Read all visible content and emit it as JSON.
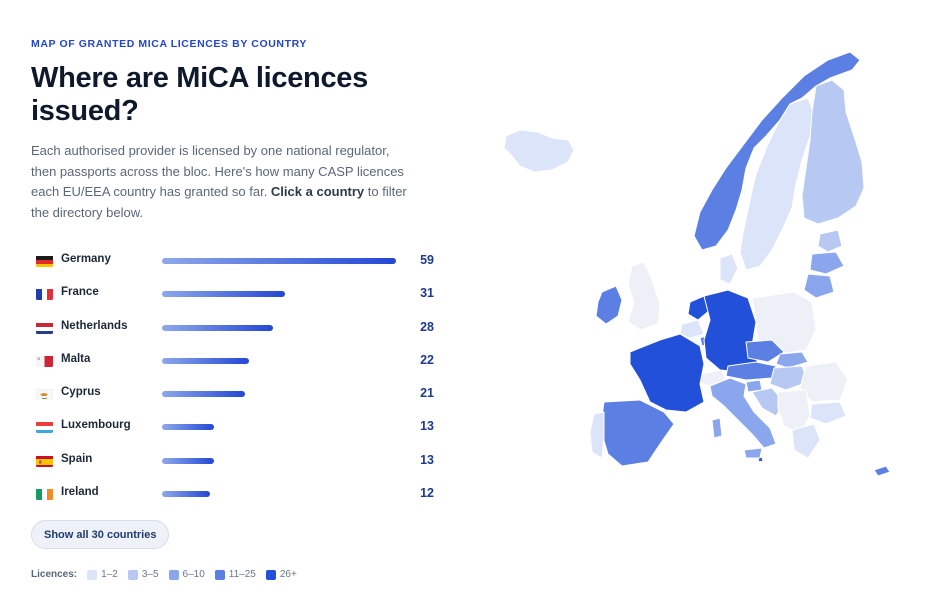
{
  "header": {
    "eyebrow": "MAP OF GRANTED MICA LICENCES BY COUNTRY",
    "title": "Where are MiCA licences issued?",
    "desc_part1": "Each authorised provider is licensed by one national regulator, then passports across the bloc. Here's how many CASP licences each EU/EEA country has granted so far. ",
    "desc_bold1": "Click a",
    "desc_bold2": "country",
    "desc_part2": " to filter the directory below."
  },
  "countries": [
    {
      "name": "Germany",
      "count": "59",
      "value": 59,
      "flag": "germany-flag"
    },
    {
      "name": "France",
      "count": "31",
      "value": 31,
      "flag": "france-flag"
    },
    {
      "name": "Netherlands",
      "count": "28",
      "value": 28,
      "flag": "netherlands-flag"
    },
    {
      "name": "Malta",
      "count": "22",
      "value": 22,
      "flag": "malta-flag"
    },
    {
      "name": "Cyprus",
      "count": "21",
      "value": 21,
      "flag": "cyprus-flag"
    },
    {
      "name": "Luxembourg",
      "count": "13",
      "value": 13,
      "flag": "luxembourg-flag"
    },
    {
      "name": "Spain",
      "count": "13",
      "value": 13,
      "flag": "spain-flag"
    },
    {
      "name": "Ireland",
      "count": "12",
      "value": 12,
      "flag": "ireland-flag"
    }
  ],
  "show_all_label": "Show all 30 countries",
  "legend": {
    "label": "Licences:",
    "items": [
      {
        "label": "1–2",
        "color": "#dbe4f8"
      },
      {
        "label": "3–5",
        "color": "#b7c8f2"
      },
      {
        "label": "6–10",
        "color": "#8aa6ec"
      },
      {
        "label": "11–25",
        "color": "#5b7fe3"
      },
      {
        "label": "26+",
        "color": "#2350d8"
      }
    ]
  },
  "colors": {
    "accent": "#2546c8",
    "none": "#edf1f7"
  }
}
